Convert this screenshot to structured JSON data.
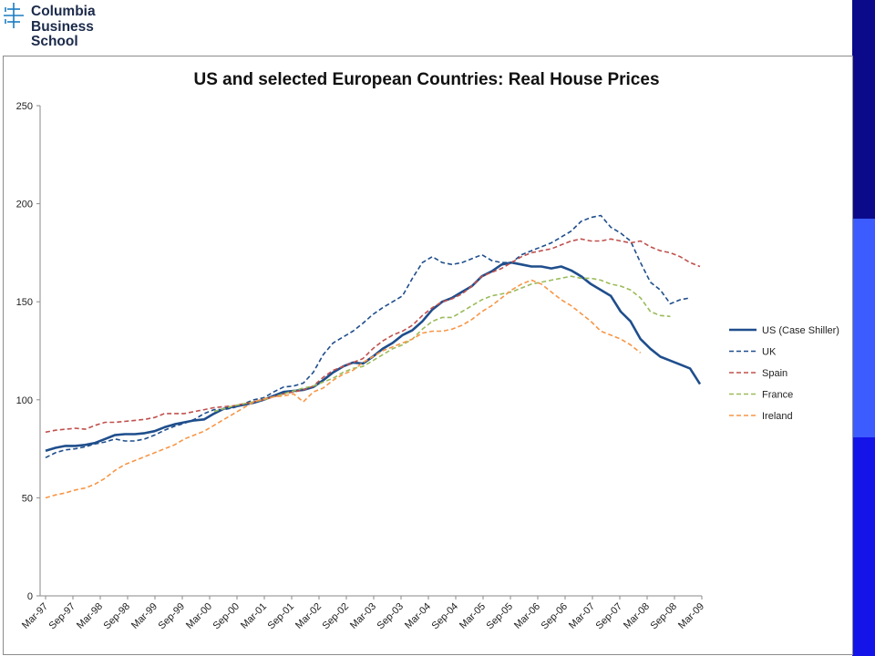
{
  "logo": {
    "lines": [
      "Columbia",
      "Business",
      "School"
    ],
    "icon": "columbia-crown-icon"
  },
  "side_bar_colors": [
    "#0a0a8a",
    "#3c5cff",
    "#1414e8"
  ],
  "chart_data": {
    "type": "line",
    "title": "US and selected European Countries: Real House Prices",
    "xlabel": "",
    "ylabel": "",
    "ylim": [
      0,
      250
    ],
    "yticks": [
      0,
      50,
      100,
      150,
      200,
      250
    ],
    "grid": false,
    "legend_position": "right",
    "x_tick_labels": [
      "Mar-97",
      "Sep-97",
      "Mar-98",
      "Sep-98",
      "Mar-99",
      "Sep-99",
      "Mar-00",
      "Sep-00",
      "Mar-01",
      "Sep-01",
      "Mar-02",
      "Sep-02",
      "Mar-03",
      "Sep-03",
      "Mar-04",
      "Sep-04",
      "Mar-05",
      "Sep-05",
      "Mar-06",
      "Sep-06",
      "Mar-07",
      "Sep-07",
      "Mar-08",
      "Sep-08",
      "Mar-09"
    ],
    "series": [
      {
        "name": "US (Case Shiller)",
        "color": "#1f4e8c",
        "dashed": false,
        "values": [
          74,
          75.5,
          76.5,
          76.5,
          77,
          78,
          80,
          82,
          82.5,
          82.5,
          83,
          84,
          86,
          87.5,
          88.5,
          89.5,
          90,
          93,
          95.5,
          96.5,
          97.5,
          98.5,
          100,
          102,
          104,
          104.5,
          105,
          106.5,
          110,
          114,
          117,
          119,
          118.5,
          122,
          126,
          129,
          133,
          135.5,
          140,
          146,
          150,
          152,
          155,
          158,
          163,
          165.5,
          169,
          170,
          169,
          168,
          168,
          167,
          168,
          166,
          163,
          159,
          156,
          153,
          145,
          140,
          131,
          126,
          122,
          120,
          118,
          116,
          108
        ]
      },
      {
        "name": "UK",
        "color": "#1f4e8c",
        "dashed": true,
        "values": [
          70.5,
          73,
          74.5,
          75,
          76,
          77.5,
          78.5,
          80,
          79,
          79,
          80,
          82,
          84.5,
          86.5,
          88,
          90,
          93,
          95,
          95,
          96,
          98,
          100,
          101,
          104,
          106.5,
          107,
          108.5,
          114,
          123,
          129,
          132,
          135,
          139,
          143.5,
          147,
          150,
          153,
          162,
          170,
          173,
          170,
          169,
          170,
          172,
          174,
          171,
          170,
          170,
          174,
          176,
          178,
          180,
          183,
          186,
          191,
          193,
          194,
          188,
          185,
          181,
          170,
          160,
          156,
          149,
          151,
          152
        ]
      },
      {
        "name": "Spain",
        "color": "#c0504d",
        "dashed": true,
        "values": [
          83.5,
          84.5,
          85,
          85.5,
          85,
          87,
          88.5,
          88.5,
          89,
          89.5,
          90,
          91,
          93,
          93,
          93,
          94,
          95,
          96,
          96.5,
          97,
          98,
          99,
          100,
          101.5,
          103,
          104,
          105,
          107,
          111.5,
          115,
          117,
          119,
          121,
          126,
          130,
          133,
          135,
          138,
          143,
          147,
          150,
          151.5,
          154,
          158,
          163,
          165,
          167,
          170,
          173,
          175,
          176,
          177,
          179,
          181,
          182,
          181,
          181,
          182,
          181,
          180,
          181,
          178,
          176,
          175,
          173,
          170,
          168
        ]
      },
      {
        "name": "France",
        "color": "#9bbb59",
        "dashed": true,
        "values": [
          null,
          null,
          null,
          null,
          null,
          null,
          null,
          null,
          null,
          null,
          null,
          null,
          null,
          null,
          null,
          null,
          null,
          94,
          95.5,
          97,
          98,
          99,
          100,
          101.5,
          103,
          104.5,
          106,
          107,
          109,
          111,
          114,
          116,
          117,
          120,
          123,
          126,
          128,
          131,
          136,
          140,
          142,
          142,
          145,
          148,
          151,
          153,
          154,
          155,
          157,
          159,
          160,
          161,
          162,
          163,
          162,
          162,
          161,
          159,
          158,
          156,
          152,
          145,
          143,
          142.5
        ]
      },
      {
        "name": "Ireland",
        "color": "#f79646",
        "dashed": true,
        "values": [
          50,
          51.5,
          52.5,
          54,
          55,
          57,
          60,
          64,
          67,
          69,
          71,
          73,
          75,
          77,
          80,
          82,
          84,
          87,
          90,
          93,
          96,
          99,
          100.5,
          101.5,
          102,
          103,
          99,
          104,
          106,
          110,
          113,
          115,
          119,
          122,
          125,
          127,
          129,
          131,
          134,
          135,
          135,
          136,
          138,
          141,
          145,
          148,
          152,
          156,
          159,
          161,
          159,
          155,
          151,
          148,
          144,
          140,
          135,
          133,
          131,
          128,
          124
        ]
      }
    ]
  }
}
